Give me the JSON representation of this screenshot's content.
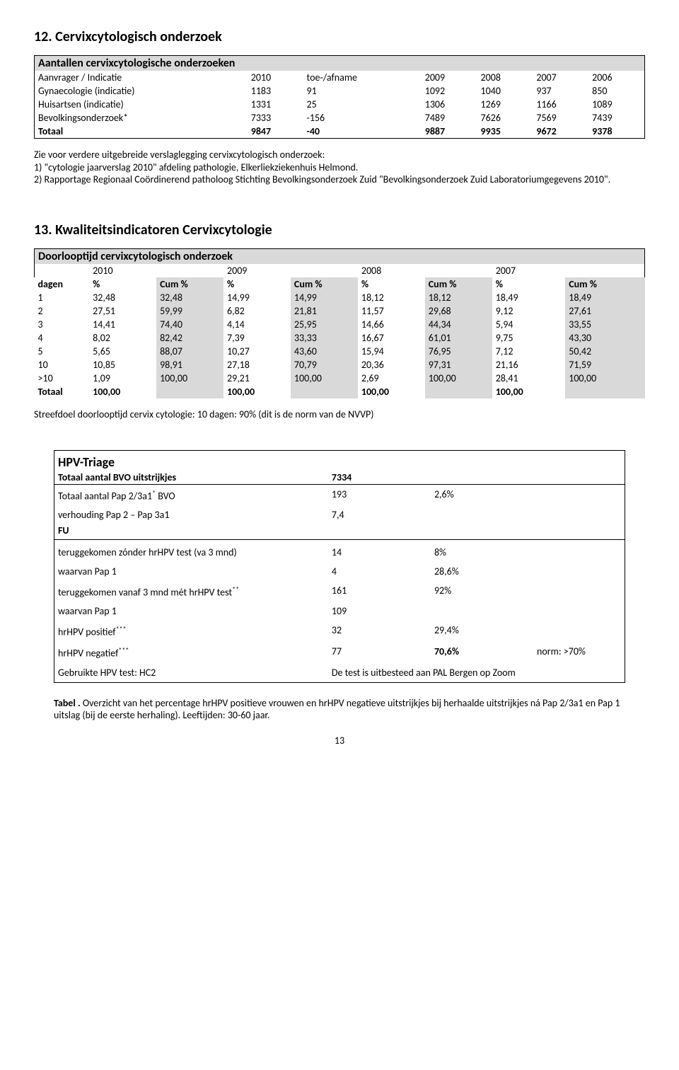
{
  "section12": {
    "title": "12. Cervixcytologisch onderzoek",
    "table_title": "Aantallen cervixcytologische onderzoeken",
    "cols": [
      "Aanvrager / Indicatie",
      "2010",
      "toe-/afname",
      "2009",
      "2008",
      "2007",
      "2006"
    ],
    "rows": [
      [
        "Gynaecologie (indicatie)",
        "1183",
        "91",
        "1092",
        "1040",
        "937",
        "850"
      ],
      [
        "Huisartsen (indicatie)",
        "1331",
        "25",
        "1306",
        "1269",
        "1166",
        "1089"
      ],
      [
        "Bevolkingsonderzoek*",
        "7333",
        "-156",
        "7489",
        "7626",
        "7569",
        "7439"
      ]
    ],
    "total": [
      "Totaal",
      "9847",
      "-40",
      "9887",
      "9935",
      "9672",
      "9378"
    ],
    "note_intro": "Zie voor verdere uitgebreide verslaglegging cervixcytologisch onderzoek:",
    "note1": "1) \"cytologie jaarverslag 2010\" afdeling pathologie, Elkerliekziekenhuis Helmond.",
    "note2": "2) Rapportage  Regionaal Coördinerend patholoog Stichting Bevolkingsonderzoek Zuid \"Bevolkingsonderzoek Zuid Laboratoriumgegevens 2010\".",
    "colors": {
      "header_bg": "#d9d9d9"
    }
  },
  "section13": {
    "title": "13. Kwaliteitsindicatoren Cervixcytologie",
    "table_title": "Doorlooptijd cervixcytologisch onderzoek",
    "year_headers": [
      "",
      "2010",
      "",
      "2009",
      "",
      "2008",
      "",
      "2007",
      ""
    ],
    "col_headers": [
      "dagen",
      "%",
      "Cum %",
      "%",
      "Cum %",
      "%",
      "Cum %",
      "%",
      "Cum %"
    ],
    "rows": [
      [
        "1",
        "32,48",
        "32,48",
        "14,99",
        "14,99",
        "18,12",
        "18,12",
        "18,49",
        "18,49"
      ],
      [
        "2",
        "27,51",
        "59,99",
        "6,82",
        "21,81",
        "11,57",
        "29,68",
        "9,12",
        "27,61"
      ],
      [
        "3",
        "14,41",
        "74,40",
        "4,14",
        "25,95",
        "14,66",
        "44,34",
        "5,94",
        "33,55"
      ],
      [
        "4",
        "8,02",
        "82,42",
        "7,39",
        "33,33",
        "16,67",
        "61,01",
        "9,75",
        "43,30"
      ],
      [
        "5",
        "5,65",
        "88,07",
        "10,27",
        "43,60",
        "15,94",
        "76,95",
        "7,12",
        "50,42"
      ],
      [
        "10",
        "10,85",
        "98,91",
        "27,18",
        "70,79",
        "20,36",
        "97,31",
        "21,16",
        "71,59"
      ],
      [
        ">10",
        "1,09",
        "100,00",
        "29,21",
        "100,00",
        "2,69",
        "100,00",
        "28,41",
        "100,00"
      ]
    ],
    "total": [
      "Totaal",
      "100,00",
      "",
      "100,00",
      "",
      "100,00",
      "",
      "100,00",
      ""
    ],
    "streefdoel": "Streefdoel doorlooptijd cervix cytologie: 10 dagen:  90% (dit is de norm van de NVVP)"
  },
  "hpv": {
    "title": "HPV-Triage",
    "rows": {
      "r1": {
        "label": "Totaal aantal BVO uitstrijkjes",
        "v1": "7334",
        "v2": ""
      },
      "r2": {
        "label_pre": "Totaal aantal Pap 2/3a1",
        "label_sup": "*",
        "label_post": " BVO",
        "v1": "193",
        "v2": "2,6%"
      },
      "r3": {
        "label": "verhouding Pap 2 – Pap 3a1",
        "v1": "7,4",
        "v2": ""
      },
      "fu": "FU",
      "r4": {
        "label": "teruggekomen zónder hrHPV test (va 3 mnd)",
        "v1": "14",
        "v2": "8%"
      },
      "r5": {
        "label": "waarvan Pap 1",
        "v1": "4",
        "v2": "28,6%"
      },
      "r6": {
        "label_pre": "teruggekomen vanaf 3 mnd mét hrHPV test",
        "label_sup": "**",
        "v1": "161",
        "v2": "92%"
      },
      "r7": {
        "label": "waarvan Pap 1",
        "v1": "109",
        "v2": ""
      },
      "r8": {
        "label_pre": " hrHPV positief",
        "label_sup": "***",
        "v1": "32",
        "v2": "29,4%"
      },
      "r9": {
        "label_pre": " hrHPV negatief",
        "label_sup": "***",
        "v1": "77",
        "v2": "70,6%",
        "norm": "norm: >70%"
      },
      "r10": {
        "label": "Gebruikte HPV test:  HC2",
        "note": "De test is uitbesteed aan PAL Bergen op Zoom"
      }
    },
    "caption_pre": "Tabel .",
    "caption": " Overzicht van het percentage hrHPV positieve vrouwen en hrHPV negatieve uitstrijkjes bij herhaalde uitstrijkjes ná Pap 2/3a1 en Pap 1 uitslag (bij de eerste herhaling). Leeftijden: 30-60 jaar."
  },
  "page_no": "13"
}
